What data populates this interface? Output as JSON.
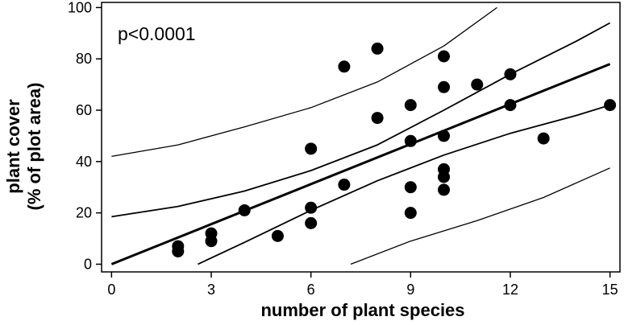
{
  "chart_data": {
    "type": "scatter",
    "xlabel": "number of plant species",
    "ylabel_line1": "plant cover",
    "ylabel_line2": "(% of plot area)",
    "annotation": "p<0.0001",
    "xlim": [
      -0.3,
      15.3
    ],
    "ylim": [
      -3,
      102
    ],
    "x_ticks": [
      0,
      3,
      6,
      9,
      12,
      15
    ],
    "y_ticks": [
      0,
      20,
      40,
      60,
      80,
      100
    ],
    "points": [
      {
        "x": 2,
        "y": 7
      },
      {
        "x": 2,
        "y": 5
      },
      {
        "x": 3,
        "y": 12
      },
      {
        "x": 3,
        "y": 9
      },
      {
        "x": 4,
        "y": 21
      },
      {
        "x": 5,
        "y": 11
      },
      {
        "x": 6,
        "y": 45
      },
      {
        "x": 6,
        "y": 22
      },
      {
        "x": 6,
        "y": 16
      },
      {
        "x": 7,
        "y": 77
      },
      {
        "x": 7,
        "y": 31
      },
      {
        "x": 8,
        "y": 84
      },
      {
        "x": 8,
        "y": 57
      },
      {
        "x": 9,
        "y": 62
      },
      {
        "x": 9,
        "y": 48
      },
      {
        "x": 9,
        "y": 30
      },
      {
        "x": 9,
        "y": 20
      },
      {
        "x": 10,
        "y": 81
      },
      {
        "x": 10,
        "y": 69
      },
      {
        "x": 10,
        "y": 50
      },
      {
        "x": 10,
        "y": 37
      },
      {
        "x": 10,
        "y": 34
      },
      {
        "x": 10,
        "y": 29
      },
      {
        "x": 11,
        "y": 70
      },
      {
        "x": 12,
        "y": 74
      },
      {
        "x": 12,
        "y": 62
      },
      {
        "x": 13,
        "y": 49
      },
      {
        "x": 15,
        "y": 62
      }
    ],
    "regression_line": [
      {
        "x": 0,
        "y": 0
      },
      {
        "x": 15,
        "y": 78
      }
    ],
    "confidence_band_upper": [
      {
        "x": 0,
        "y": 18.5
      },
      {
        "x": 2,
        "y": 22.5
      },
      {
        "x": 4,
        "y": 28.5
      },
      {
        "x": 6,
        "y": 36.5
      },
      {
        "x": 8,
        "y": 46.5
      },
      {
        "x": 10,
        "y": 60
      },
      {
        "x": 12,
        "y": 74
      },
      {
        "x": 14,
        "y": 87
      },
      {
        "x": 15,
        "y": 94
      }
    ],
    "confidence_band_lower": [
      {
        "x": 2.6,
        "y": 0
      },
      {
        "x": 4,
        "y": 8.5
      },
      {
        "x": 6,
        "y": 21
      },
      {
        "x": 8,
        "y": 32.5
      },
      {
        "x": 10,
        "y": 42.5
      },
      {
        "x": 12,
        "y": 51
      },
      {
        "x": 14,
        "y": 58
      },
      {
        "x": 15,
        "y": 62
      }
    ],
    "prediction_band_upper": [
      {
        "x": 0,
        "y": 42
      },
      {
        "x": 2,
        "y": 46.5
      },
      {
        "x": 4,
        "y": 53.5
      },
      {
        "x": 6,
        "y": 61
      },
      {
        "x": 8,
        "y": 71
      },
      {
        "x": 10,
        "y": 85
      },
      {
        "x": 11.6,
        "y": 100
      }
    ],
    "prediction_band_lower": [
      {
        "x": 7.2,
        "y": 0
      },
      {
        "x": 9,
        "y": 9
      },
      {
        "x": 11,
        "y": 17
      },
      {
        "x": 13,
        "y": 26
      },
      {
        "x": 15,
        "y": 37.5
      }
    ],
    "grid": false,
    "legend": "none",
    "colors": {
      "points": "#000000",
      "lines": "#000000",
      "background": "#ffffff"
    }
  }
}
